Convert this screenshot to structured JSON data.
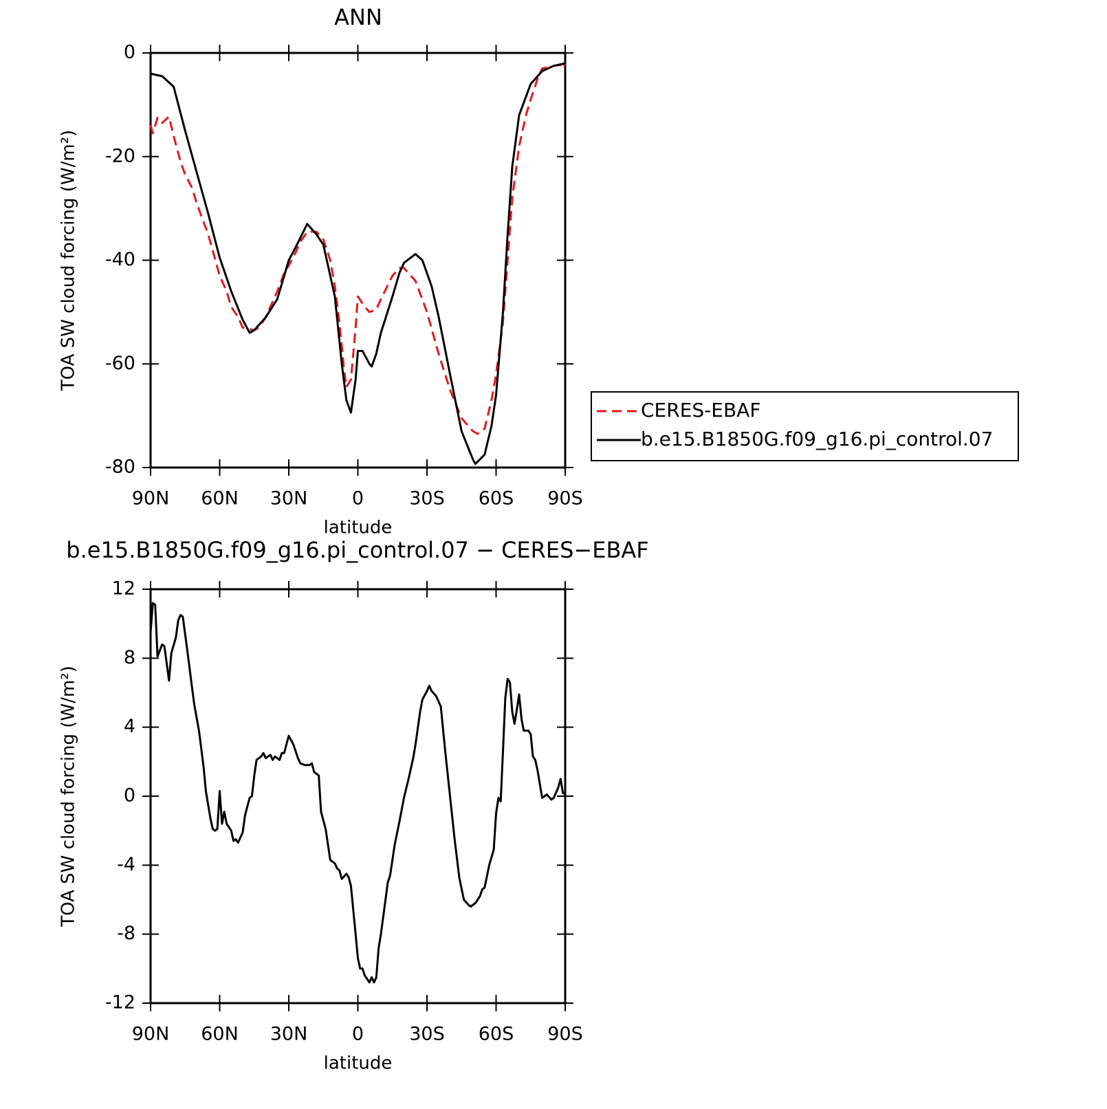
{
  "chart_data": [
    {
      "type": "line",
      "title": "ANN",
      "xlabel": "latitude",
      "ylabel": "TOA SW cloud forcing (W/m²)",
      "xlim": [
        90,
        -90
      ],
      "xticks": [
        {
          "value": 90,
          "label": "90N"
        },
        {
          "value": 60,
          "label": "60N"
        },
        {
          "value": 30,
          "label": "30N"
        },
        0,
        {
          "value": -30,
          "label": "30S"
        },
        {
          "value": -60,
          "label": "60S"
        },
        {
          "value": -90,
          "label": "90S"
        }
      ],
      "ylim": [
        -80,
        0
      ],
      "yticks": [
        -80,
        -60,
        -40,
        -20,
        0
      ],
      "legend": "right",
      "series": [
        {
          "name": "CERES-EBAF",
          "color": "#e41a1c",
          "dash": true,
          "x": [
            90,
            89,
            87,
            85,
            82,
            80,
            77,
            75,
            72,
            70,
            65,
            60,
            57,
            55,
            52,
            50,
            47,
            45,
            43,
            40,
            35,
            32,
            30,
            27,
            25,
            22,
            18,
            15,
            12,
            10,
            8,
            6,
            5,
            3,
            1,
            0,
            -3,
            -5,
            -8,
            -10,
            -15,
            -18,
            -20,
            -25,
            -30,
            -35,
            -40,
            -45,
            -50,
            -52,
            -55,
            -58,
            -60,
            -63,
            -65,
            -67,
            -70,
            -73,
            -75,
            -78,
            -80,
            -85,
            -88,
            -89,
            -90
          ],
          "values": [
            -14,
            -15.5,
            -12.5,
            -13.5,
            -12.3,
            -16,
            -21,
            -23.5,
            -26,
            -29,
            -35,
            -43,
            -46,
            -49,
            -51,
            -53,
            -53.3,
            -53.5,
            -53,
            -51,
            -46,
            -42.5,
            -41,
            -38.5,
            -36.5,
            -34.5,
            -34.5,
            -36,
            -40,
            -45,
            -52,
            -61,
            -64.5,
            -63,
            -53,
            -47,
            -49,
            -50,
            -49.5,
            -47.5,
            -43,
            -41.5,
            -41.5,
            -44,
            -50,
            -58,
            -65,
            -70.5,
            -73,
            -73.5,
            -72.5,
            -67,
            -62,
            -52,
            -40,
            -28,
            -18,
            -12,
            -9,
            -5,
            -3,
            -2.5,
            -2.3,
            -3,
            -2
          ]
        },
        {
          "name": "b.e15.B1850G.f09_g16.pi_control.07",
          "color": "#000000",
          "dash": false,
          "x": [
            90,
            85,
            80,
            75,
            70,
            65,
            60,
            55,
            50,
            47,
            45,
            40,
            35,
            30,
            27,
            22,
            18,
            15,
            10,
            7,
            5,
            3,
            1,
            0,
            -2,
            -5,
            -6,
            -8,
            -10,
            -15,
            -18,
            -20,
            -25,
            -28,
            -32,
            -35,
            -40,
            -45,
            -50,
            -51,
            -55,
            -58,
            -60,
            -63,
            -65,
            -67,
            -70,
            -75,
            -80,
            -85,
            -90
          ],
          "values": [
            -4,
            -4.5,
            -6.5,
            -15,
            -23,
            -31,
            -39.5,
            -46,
            -51.5,
            -54,
            -53.5,
            -51,
            -47.5,
            -40,
            -37.5,
            -33,
            -35,
            -37,
            -47,
            -60,
            -67,
            -69.4,
            -63,
            -57.5,
            -57.5,
            -60,
            -60.5,
            -58,
            -54,
            -47,
            -42.5,
            -40.5,
            -38.8,
            -40,
            -45,
            -50.8,
            -62,
            -73,
            -78.5,
            -79.3,
            -77.5,
            -72,
            -66,
            -50,
            -35,
            -22,
            -12,
            -6,
            -3.5,
            -2.5,
            -2
          ]
        }
      ]
    },
    {
      "type": "line",
      "title": "b.e15.B1850G.f09_g16.pi_control.07 − CERES−EBAF",
      "xlabel": "latitude",
      "ylabel": "TOA SW cloud forcing (W/m²)",
      "xlim": [
        90,
        -90
      ],
      "xticks": [
        {
          "value": 90,
          "label": "90N"
        },
        {
          "value": 60,
          "label": "60N"
        },
        {
          "value": 30,
          "label": "30N"
        },
        0,
        {
          "value": -30,
          "label": "30S"
        },
        {
          "value": -60,
          "label": "60S"
        },
        {
          "value": -90,
          "label": "90S"
        }
      ],
      "ylim": [
        -12,
        12
      ],
      "yticks": [
        -12,
        -8,
        -4,
        0,
        4,
        8,
        12
      ],
      "color": "#000000",
      "x": [
        90,
        89,
        88,
        87,
        85,
        84,
        82,
        81,
        79,
        78,
        77,
        76,
        74,
        72,
        71,
        69,
        67,
        66,
        64,
        63,
        62,
        61,
        60,
        59,
        58,
        57,
        55,
        54,
        53,
        52,
        50,
        49,
        47,
        46,
        45,
        44,
        42,
        41,
        40,
        38,
        37,
        36,
        34,
        33,
        32,
        31,
        30,
        28,
        26,
        25,
        23,
        21,
        20,
        19,
        17,
        16,
        14,
        12,
        11,
        10,
        9,
        8,
        7,
        5,
        4,
        3,
        1,
        0,
        -1,
        -2,
        -3,
        -4,
        -5,
        -6,
        -7,
        -8,
        -9,
        -10,
        -12,
        -13,
        -14,
        -16,
        -18,
        -20,
        -22,
        -24,
        -25,
        -27,
        -28,
        -30,
        -31,
        -32,
        -34,
        -36,
        -38,
        -40,
        -42,
        -44,
        -46,
        -48,
        -49,
        -51,
        -53,
        -54,
        -55,
        -57,
        -59,
        -60,
        -61,
        -62,
        -63,
        -64,
        -65,
        -66,
        -67,
        -68,
        -69,
        -70,
        -71,
        -72,
        -73,
        -74,
        -75,
        -76,
        -77,
        -78,
        -80,
        -81,
        -82,
        -84,
        -85,
        -86,
        -87,
        -88,
        -89,
        -90
      ],
      "values": [
        9.5,
        11.2,
        11.1,
        8.1,
        8.8,
        8.7,
        6.7,
        8.3,
        9.2,
        10.2,
        10.5,
        10.4,
        8.4,
        6.3,
        5.3,
        3.8,
        1.7,
        0.3,
        -1.3,
        -1.9,
        -2,
        -1.9,
        0.3,
        -1.6,
        -0.9,
        -1.6,
        -2,
        -2.6,
        -2.5,
        -2.7,
        -2.1,
        -1.1,
        -0.1,
        0,
        1.2,
        2.1,
        2.3,
        2.5,
        2.2,
        2.4,
        2.1,
        2.3,
        2.1,
        2.5,
        2.5,
        3,
        3.5,
        3,
        2.2,
        1.9,
        1.8,
        1.8,
        1.9,
        1.4,
        1.2,
        -0.9,
        -1.9,
        -3.7,
        -3.8,
        -3.9,
        -4.2,
        -4.3,
        -4.8,
        -4.5,
        -4.7,
        -5.2,
        -8,
        -9.4,
        -10,
        -10,
        -10.4,
        -10.6,
        -10.8,
        -10.5,
        -10.8,
        -10.5,
        -8.8,
        -8,
        -6,
        -5,
        -4.6,
        -2.8,
        -1.5,
        -0.1,
        1,
        2.2,
        3,
        4.9,
        5.6,
        6.1,
        6.4,
        6.1,
        5.8,
        5.2,
        2.5,
        0,
        -2.5,
        -4.7,
        -6,
        -6.3,
        -6.4,
        -6.2,
        -5.8,
        -5.4,
        -5.3,
        -4,
        -3.1,
        -1,
        -0.1,
        -0.3,
        2.6,
        5.7,
        6.8,
        6.6,
        4.9,
        4.2,
        5,
        5.9,
        4.5,
        3.8,
        3.8,
        3.8,
        3.6,
        2.3,
        2.1,
        1.5,
        -0.1,
        0,
        0.1,
        -0.2,
        -0.1,
        0.2,
        0.5,
        1,
        0.2,
        0.1
      ]
    }
  ]
}
